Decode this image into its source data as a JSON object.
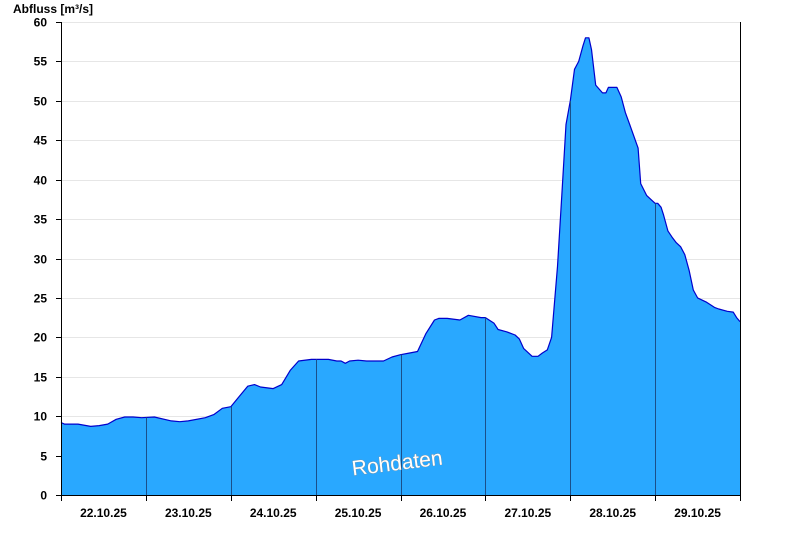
{
  "chart_data": {
    "type": "area",
    "title": "",
    "ylabel": "Abfluss [m³/s]",
    "xlabel": "",
    "ylim": [
      0,
      60
    ],
    "yticks": [
      0,
      5,
      10,
      15,
      20,
      25,
      30,
      35,
      40,
      45,
      50,
      55,
      60
    ],
    "xlim": [
      0,
      8
    ],
    "x_unit": "days since 22.10.25 00:00",
    "day_boundaries": [
      0,
      1,
      2,
      3,
      4,
      5,
      6,
      7,
      8
    ],
    "day_labels": [
      "22.10.25",
      "23.10.25",
      "24.10.25",
      "25.10.25",
      "26.10.25",
      "27.10.25",
      "28.10.25",
      "29.10.25"
    ],
    "watermark": "Rohdaten",
    "grid": "horizontal light grey lines at each y tick",
    "colors": {
      "fill": "#29a8ff",
      "line": "#0000cc",
      "grid": "#e6e6e6",
      "axis": "#000000",
      "day_separator": "#1a4f8a"
    },
    "series": [
      {
        "name": "Abfluss",
        "x": [
          0.0,
          0.04,
          0.2,
          0.3,
          0.35,
          0.45,
          0.55,
          0.65,
          0.75,
          0.85,
          0.95,
          1.1,
          1.3,
          1.4,
          1.5,
          1.7,
          1.8,
          1.9,
          2.0,
          2.1,
          2.2,
          2.28,
          2.35,
          2.5,
          2.6,
          2.7,
          2.8,
          2.95,
          3.05,
          3.15,
          3.25,
          3.3,
          3.35,
          3.4,
          3.5,
          3.6,
          3.7,
          3.8,
          3.9,
          4.0,
          4.1,
          4.2,
          4.3,
          4.4,
          4.45,
          4.55,
          4.7,
          4.8,
          4.95,
          5.0,
          5.1,
          5.15,
          5.25,
          5.35,
          5.4,
          5.45,
          5.55,
          5.58,
          5.62,
          5.67,
          5.73,
          5.78,
          5.85,
          5.9,
          5.95,
          6.0,
          6.05,
          6.1,
          6.15,
          6.18,
          6.22,
          6.25,
          6.3,
          6.38,
          6.42,
          6.45,
          6.5,
          6.55,
          6.6,
          6.65,
          6.7,
          6.8,
          6.83,
          6.9,
          6.95,
          7.0,
          7.03,
          7.07,
          7.1,
          7.15,
          7.2,
          7.25,
          7.3,
          7.35,
          7.4,
          7.45,
          7.5,
          7.6,
          7.7,
          7.75,
          7.85,
          7.92,
          7.96,
          8.0
        ],
        "values": [
          9.2,
          9.0,
          9.0,
          8.8,
          8.7,
          8.8,
          9.0,
          9.6,
          9.9,
          9.9,
          9.8,
          9.9,
          9.4,
          9.3,
          9.4,
          9.8,
          10.2,
          11.0,
          11.2,
          12.5,
          13.8,
          14.0,
          13.7,
          13.5,
          14.0,
          15.8,
          17.0,
          17.2,
          17.2,
          17.2,
          17.0,
          17.0,
          16.7,
          17.0,
          17.1,
          17.0,
          17.0,
          17.0,
          17.5,
          17.8,
          18.0,
          18.2,
          20.5,
          22.2,
          22.4,
          22.4,
          22.2,
          22.8,
          22.5,
          22.5,
          21.8,
          21.0,
          20.7,
          20.3,
          19.8,
          18.6,
          17.6,
          17.6,
          17.6,
          18.0,
          18.4,
          20.0,
          29.0,
          38.0,
          47.0,
          50.0,
          54.0,
          55.0,
          57.0,
          58.0,
          58.0,
          56.5,
          52.0,
          51.0,
          51.0,
          51.7,
          51.7,
          51.7,
          50.5,
          48.5,
          47.0,
          44.0,
          39.5,
          38.0,
          37.5,
          37.0,
          37.0,
          36.5,
          35.5,
          33.5,
          32.7,
          32.0,
          31.5,
          30.5,
          28.5,
          26.0,
          25.0,
          24.5,
          23.8,
          23.6,
          23.3,
          23.2,
          22.5,
          22.0
        ]
      }
    ]
  }
}
